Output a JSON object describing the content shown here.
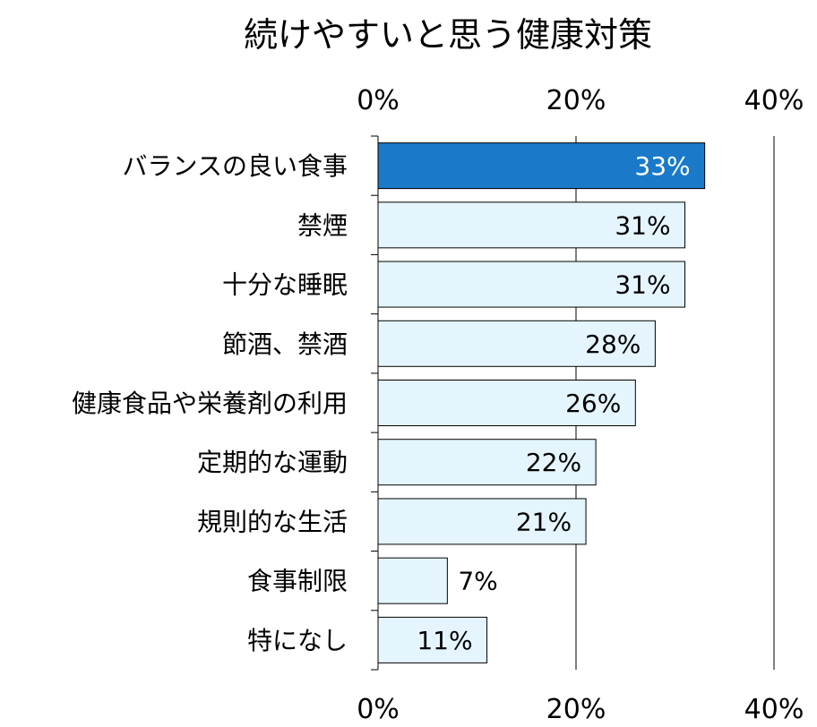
{
  "chart_data": {
    "type": "bar",
    "orientation": "horizontal",
    "title": "続けやすいと思う健康対策",
    "categories": [
      "バランスの良い食事",
      "禁煙",
      "十分な睡眠",
      "節酒、禁酒",
      "健康食品や栄養剤の利用",
      "定期的な運動",
      "規則的な生活",
      "食事制限",
      "特になし"
    ],
    "values": [
      33,
      31,
      31,
      28,
      26,
      22,
      21,
      7,
      11
    ],
    "value_labels": [
      "33%",
      "31%",
      "31%",
      "28%",
      "26%",
      "22%",
      "21%",
      "7%",
      "11%"
    ],
    "xlim": [
      0,
      40
    ],
    "x_ticks": [
      0,
      20,
      40
    ],
    "x_tick_labels": [
      "0%",
      "20%",
      "40%"
    ],
    "axis_labels_position": "top and bottom",
    "grid": true,
    "highlight_index": 0,
    "colors": {
      "highlight_fill": "#1a7ac9",
      "bar_fill": "#e4f5fd",
      "bar_stroke": "#000000",
      "highlight_label": "#ffffff",
      "label": "#000000",
      "gridline": "#000000"
    }
  }
}
